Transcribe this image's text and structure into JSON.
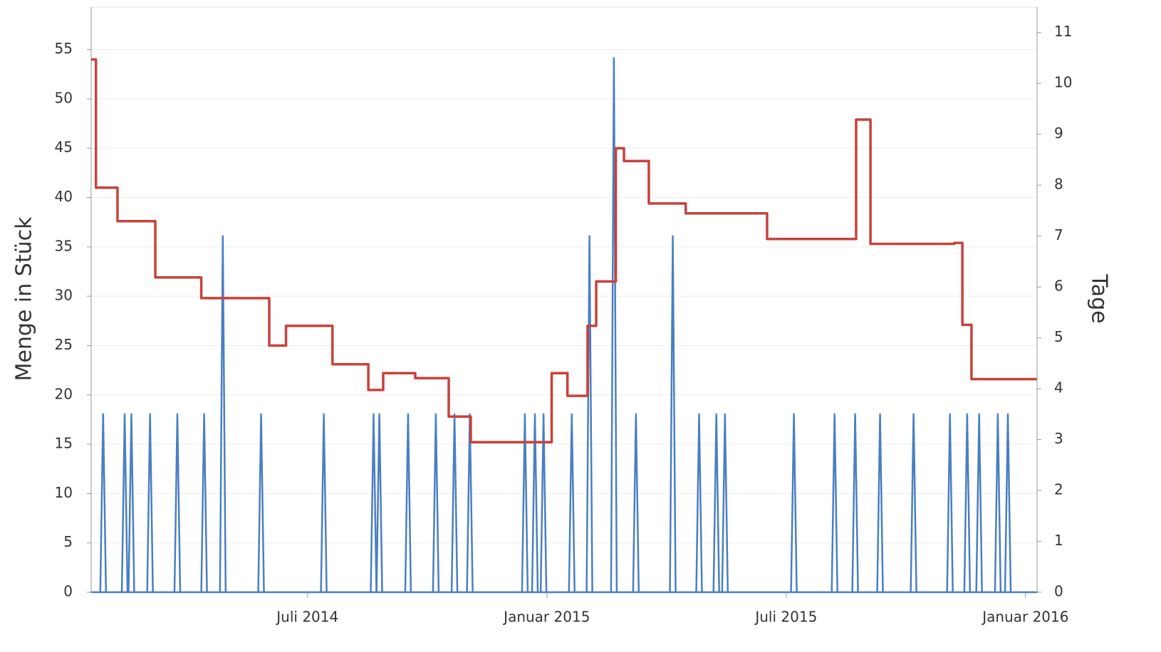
{
  "chart_data": {
    "type": "line",
    "ylabel": "Menge in Stück",
    "y2label": "Tage",
    "xlim": [
      2014.048,
      2016.024
    ],
    "xticks": [
      {
        "value": 2014.5,
        "label": "Juli 2014"
      },
      {
        "value": 2015.0,
        "label": "Januar 2015"
      },
      {
        "value": 2015.5,
        "label": "Juli 2015"
      },
      {
        "value": 2016.0,
        "label": "Januar 2016"
      }
    ],
    "ylim": [
      0,
      59.3
    ],
    "yticks": [
      0,
      5,
      10,
      15,
      20,
      25,
      30,
      35,
      40,
      45,
      50,
      55
    ],
    "y2lim": [
      0,
      11.5
    ],
    "y2ticks": [
      0,
      1,
      2,
      3,
      4,
      5,
      6,
      7,
      8,
      9,
      10,
      11
    ],
    "grid": true,
    "series": [
      {
        "color": "#c8413b",
        "step": "after",
        "x": [
          2014.048,
          2014.058,
          2014.103,
          2014.182,
          2014.278,
          2014.42,
          2014.455,
          2014.552,
          2014.627,
          2014.658,
          2014.725,
          2014.795,
          2014.841,
          2015.01,
          2015.043,
          2015.085,
          2015.103,
          2015.144,
          2015.161,
          2015.213,
          2015.29,
          2015.46,
          2015.646,
          2015.676,
          2015.851,
          2015.868,
          2015.887,
          2016.024
        ],
        "values": [
          54,
          41,
          37.6,
          31.9,
          29.8,
          25,
          27,
          23.1,
          20.5,
          22.2,
          21.7,
          17.8,
          15.2,
          22.2,
          19.9,
          27,
          31.5,
          45,
          43.7,
          39.4,
          38.4,
          35.8,
          47.9,
          35.3,
          35.4,
          27.1,
          21.6,
          21.6
        ]
      },
      {
        "color": "#4a7fc1",
        "axis": "y2",
        "type": "spike",
        "x": [
          2014.073,
          2014.118,
          2014.132,
          2014.171,
          2014.228,
          2014.284,
          2014.323,
          2014.403,
          2014.534,
          2014.638,
          2014.65,
          2014.71,
          2014.768,
          2014.807,
          2014.839,
          2014.954,
          2014.975,
          2014.993,
          2015.052,
          2015.089,
          2015.14,
          2015.186,
          2015.263,
          2015.318,
          2015.354,
          2015.372,
          2015.516,
          2015.601,
          2015.644,
          2015.696,
          2015.766,
          2015.842,
          2015.878,
          2015.903,
          2015.942,
          2015.963
        ],
        "values": [
          3.5,
          3.5,
          3.5,
          3.5,
          3.5,
          3.5,
          7,
          3.5,
          3.5,
          3.5,
          3.5,
          3.5,
          3.5,
          3.5,
          3.5,
          3.5,
          3.5,
          3.5,
          3.5,
          7,
          10.5,
          3.5,
          7,
          3.5,
          3.5,
          3.5,
          3.5,
          3.5,
          3.5,
          3.5,
          3.5,
          3.5,
          3.5,
          3.5,
          3.5,
          3.5
        ]
      }
    ]
  }
}
